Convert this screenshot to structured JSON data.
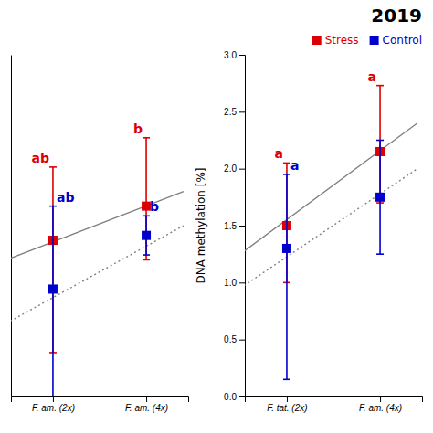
{
  "chart_data": [
    {
      "type": "scatter",
      "xlim": [
        -0.45,
        1.45
      ],
      "xticks": [
        {
          "value": 0,
          "label": "F. am. (2x)"
        },
        {
          "value": 1,
          "label": "F. am. (4x)"
        }
      ],
      "ylim": [
        -0.5,
        3.0
      ],
      "tick_labels": "x",
      "series": [
        {
          "type": "line",
          "line_style": "solid",
          "color": "gray",
          "x": [
            -0.5,
            1.4
          ],
          "values": [
            0.9,
            1.6
          ]
        },
        {
          "type": "line",
          "line_style": "dotted",
          "color": "gray",
          "x": [
            -0.5,
            1.4
          ],
          "values": [
            0.25,
            1.25
          ]
        },
        {
          "type": "scatter",
          "marker": "square",
          "color": "#dd0000",
          "x": [
            0,
            1
          ],
          "values": [
            1.1,
            1.45
          ],
          "error_lower": [
            1.15,
            0.55
          ],
          "error_upper": [
            0.75,
            0.7
          ],
          "annotations": [
            "ab",
            "b"
          ]
        },
        {
          "type": "scatter",
          "marker": "square",
          "color": "#0000cc",
          "x": [
            0,
            1
          ],
          "values": [
            0.6,
            1.15
          ],
          "error_lower": [
            1.1,
            0.2
          ],
          "error_upper": [
            0.85,
            0.2
          ],
          "annotations": [
            "ab",
            "b"
          ]
        }
      ]
    },
    {
      "type": "scatter",
      "title": "2019",
      "ylabel": "DNA methylation [%]",
      "xlim": [
        -0.45,
        1.45
      ],
      "xticks": [
        {
          "value": 0,
          "label": "F. tat. (2x)"
        },
        {
          "value": 1,
          "label": "F. am. (4x)"
        }
      ],
      "ylim": [
        0.0,
        3.0
      ],
      "yticks": [
        {
          "value": 0.0,
          "label": "0.0"
        },
        0.5,
        {
          "value": 1.0,
          "label": "1.0"
        },
        1.5,
        {
          "value": 2.0,
          "label": "2.0"
        },
        2.5,
        {
          "value": 3.0,
          "label": "3.0"
        }
      ],
      "legend": "upper right",
      "series": [
        {
          "type": "line",
          "line_style": "solid",
          "color": "gray",
          "x": [
            -0.5,
            1.4
          ],
          "values": [
            1.25,
            2.4
          ]
        },
        {
          "type": "line",
          "line_style": "dotted",
          "color": "gray",
          "x": [
            -0.5,
            1.4
          ],
          "values": [
            0.95,
            2.0
          ]
        },
        {
          "type": "scatter",
          "name": "Stress",
          "marker": "square",
          "color": "#dd0000",
          "x": [
            0,
            1
          ],
          "values": [
            1.5,
            2.15
          ],
          "error_lower": [
            0.5,
            0.45
          ],
          "error_upper": [
            0.55,
            0.58
          ],
          "annotations": [
            "a",
            "a"
          ]
        },
        {
          "type": "scatter",
          "name": "Control",
          "marker": "square",
          "color": "#0000cc",
          "x": [
            0,
            1
          ],
          "values": [
            1.3,
            1.75
          ],
          "error_lower": [
            1.15,
            0.5
          ],
          "error_upper": [
            0.65,
            0.5
          ],
          "annotations": [
            "a",
            null
          ]
        }
      ]
    }
  ]
}
